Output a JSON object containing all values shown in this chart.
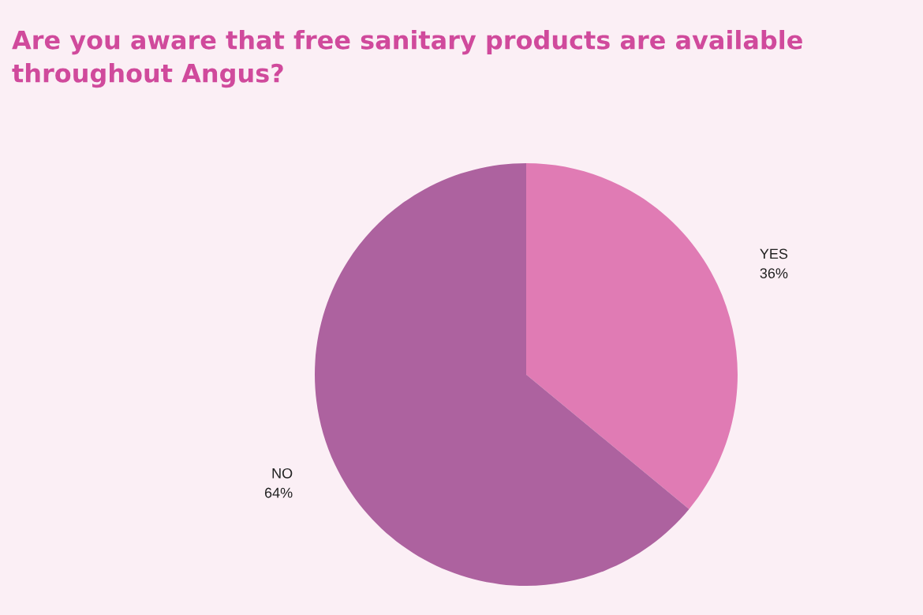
{
  "chart_data": {
    "type": "pie",
    "title": "Are you aware that free sanitary products are available\nthroughout Angus?",
    "categories": [
      "YES",
      "NO"
    ],
    "values": [
      36,
      64
    ],
    "value_labels": [
      "36%",
      "64%"
    ],
    "colors": [
      "#e07bb4",
      "#ad629f"
    ],
    "legend": false
  }
}
